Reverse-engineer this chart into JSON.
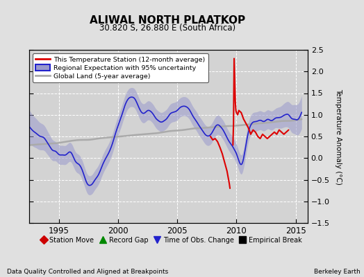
{
  "title": "ALIWAL NORTH PLAATKOP",
  "subtitle": "30.820 S, 26.880 E (South Africa)",
  "ylabel": "Temperature Anomaly (°C)",
  "xlim": [
    1992.5,
    2016.0
  ],
  "ylim": [
    -1.5,
    2.5
  ],
  "yticks": [
    -1.5,
    -1.0,
    -0.5,
    0.0,
    0.5,
    1.0,
    1.5,
    2.0,
    2.5
  ],
  "xticks": [
    1995,
    2000,
    2005,
    2010,
    2015
  ],
  "bg_color": "#e0e0e0",
  "plot_bg_color": "#d3d3d3",
  "grid_color": "#ffffff",
  "station_line_color": "#dd0000",
  "regional_line_color": "#2222cc",
  "regional_fill_color": "#9999cc",
  "global_line_color": "#aaaaaa",
  "footer_left": "Data Quality Controlled and Aligned at Breakpoints",
  "footer_right": "Berkeley Earth",
  "legend1_entries": [
    "This Temperature Station (12-month average)",
    "Regional Expectation with 95% uncertainty",
    "Global Land (5-year average)"
  ],
  "legend2_entries": [
    "Station Move",
    "Record Gap",
    "Time of Obs. Change",
    "Empirical Break"
  ]
}
